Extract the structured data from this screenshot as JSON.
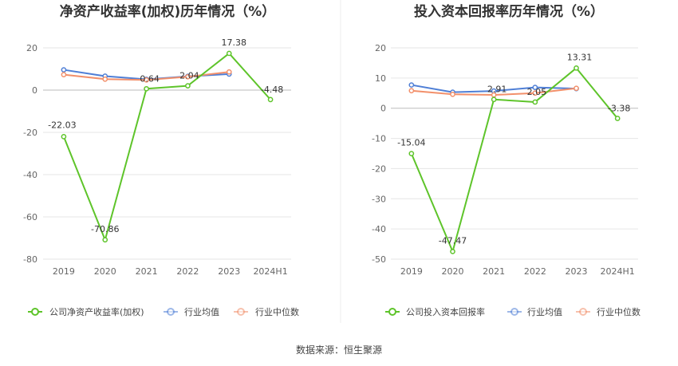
{
  "source": "数据来源：恒生聚源",
  "colors": {
    "company": "#5ec42a",
    "avg": "#4f7fd6",
    "median": "#f2906b",
    "grid": "#e6e6e6"
  },
  "chart_data": [
    {
      "type": "line",
      "title": "净资产收益率(加权)历年情况（%）",
      "categories": [
        "2019",
        "2020",
        "2021",
        "2022",
        "2023",
        "2024H1"
      ],
      "ylim": [
        -80,
        20
      ],
      "yticks": [
        20,
        0,
        -20,
        -40,
        -60,
        -80
      ],
      "legend_position": "bottom",
      "series": [
        {
          "name": "公司净资产收益率(加权)",
          "values": [
            -22.03,
            -70.86,
            0.64,
            2.04,
            17.38,
            -4.48
          ],
          "labels": [
            "-22.03",
            "-70.86",
            "0.64",
            "2.04",
            "17.38",
            "-4.48"
          ]
        },
        {
          "name": "行业均值",
          "values": [
            9.6,
            6.6,
            5.1,
            6.5,
            7.6,
            null
          ]
        },
        {
          "name": "行业中位数",
          "values": [
            7.3,
            5.2,
            4.8,
            6.3,
            8.6,
            null
          ]
        }
      ]
    },
    {
      "type": "line",
      "title": "投入资本回报率历年情况（%）",
      "categories": [
        "2019",
        "2020",
        "2021",
        "2022",
        "2023",
        "2024H1"
      ],
      "ylim": [
        -50,
        20
      ],
      "yticks": [
        20,
        10,
        0,
        -10,
        -20,
        -30,
        -40,
        -50
      ],
      "legend_position": "bottom",
      "series": [
        {
          "name": "公司投入资本回报率",
          "values": [
            -15.04,
            -47.47,
            2.91,
            2.05,
            13.31,
            -3.38
          ],
          "labels": [
            "-15.04",
            "-47.47",
            "2.91",
            "2.05",
            "13.31",
            "-3.38"
          ]
        },
        {
          "name": "行业均值",
          "values": [
            7.7,
            5.3,
            5.7,
            6.9,
            6.5,
            null
          ]
        },
        {
          "name": "行业中位数",
          "values": [
            5.8,
            4.6,
            4.4,
            5.0,
            6.6,
            null
          ]
        }
      ]
    }
  ]
}
